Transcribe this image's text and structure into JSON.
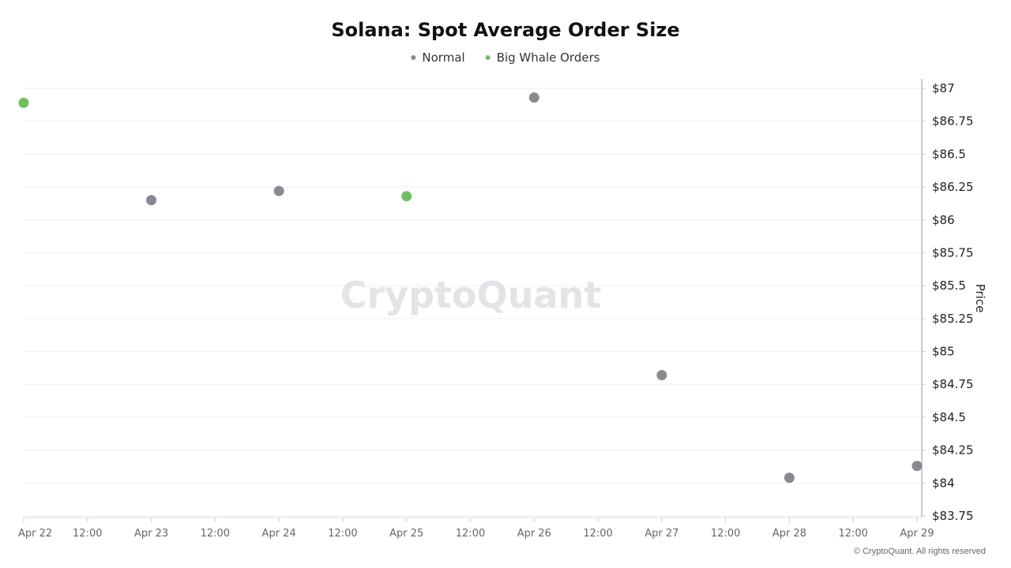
{
  "chart_data": {
    "type": "scatter",
    "title": "Solana: Spot Average Order Size",
    "legend": {
      "placement": "top-center",
      "items": [
        {
          "name": "Normal",
          "color": "#8a898f"
        },
        {
          "name": "Big Whale Orders",
          "color": "#6fbf61"
        }
      ]
    },
    "ylabel": "Price",
    "y_axis_side": "right",
    "ylim": [
      83.75,
      87
    ],
    "y_ticks": [
      87,
      86.75,
      86.5,
      86.25,
      86,
      85.75,
      85.5,
      85.25,
      85,
      84.75,
      84.5,
      84.25,
      84,
      83.75
    ],
    "y_tick_labels": [
      "$87",
      "$86.75",
      "$86.5",
      "$86.25",
      "$86",
      "$85.75",
      "$85.5",
      "$85.25",
      "$85",
      "$84.75",
      "$84.5",
      "$84.25",
      "$84",
      "$83.75"
    ],
    "xlim": [
      "Apr 22",
      "Apr 29"
    ],
    "x_ticks": [
      0,
      0.5,
      1,
      1.5,
      2,
      2.5,
      3,
      3.5,
      4,
      4.5,
      5,
      5.5,
      6,
      6.5,
      7
    ],
    "x_tick_labels": [
      "Apr 22",
      "12:00",
      "Apr 23",
      "12:00",
      "Apr 24",
      "12:00",
      "Apr 25",
      "12:00",
      "Apr 26",
      "12:00",
      "Apr 27",
      "12:00",
      "Apr 28",
      "12:00",
      "Apr 29"
    ],
    "grid": "horizontal",
    "series": [
      {
        "name": "Normal",
        "color": "#8a898f",
        "points": [
          {
            "x": "Apr 23",
            "y": 86.15
          },
          {
            "x": "Apr 24",
            "y": 86.22
          },
          {
            "x": "Apr 26",
            "y": 86.93
          },
          {
            "x": "Apr 27",
            "y": 84.82
          },
          {
            "x": "Apr 28",
            "y": 84.04
          },
          {
            "x": "Apr 29",
            "y": 84.13
          }
        ]
      },
      {
        "name": "Big Whale Orders",
        "color": "#6fbf61",
        "points": [
          {
            "x": "Apr 22",
            "y": 86.89
          },
          {
            "x": "Apr 25",
            "y": 86.18
          }
        ]
      }
    ]
  },
  "watermark": "CryptoQuant",
  "copyright": "© CryptoQuant. All rights reserved"
}
